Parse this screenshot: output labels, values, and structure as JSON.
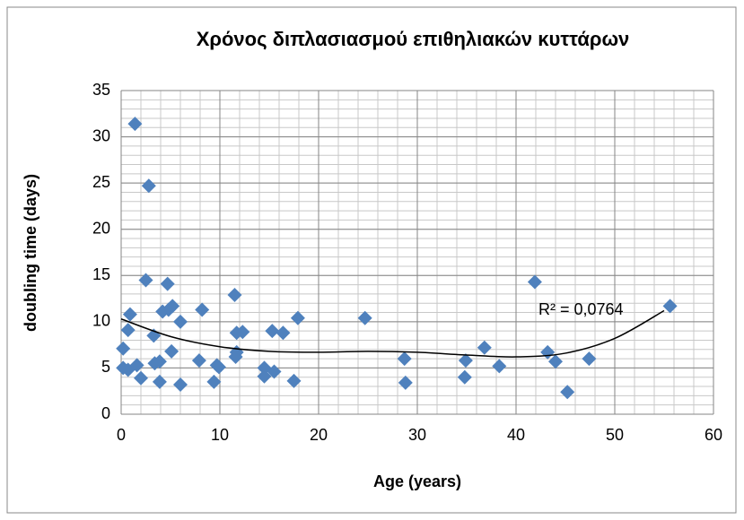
{
  "chart_data": {
    "type": "scatter",
    "title": "Χρόνος διπλασιασμού επιθηλιακών κυττάρων",
    "x_label": "Age (years)",
    "y_label": "doubling time (days)",
    "annotation": "R² = 0,0764",
    "xlim": [
      0,
      60
    ],
    "xticks": [
      0,
      10,
      20,
      30,
      40,
      50,
      60
    ],
    "ylim": [
      0,
      35
    ],
    "yticks": [
      0,
      5,
      10,
      15,
      20,
      25,
      30,
      35
    ],
    "grid": true,
    "minor_grid": true,
    "series": [
      {
        "name": "doubling time",
        "color": "#4f81bd",
        "x": [
          0.2,
          0.2,
          1.4,
          2.8,
          2.5,
          0.9,
          0.7,
          0.7,
          1.6,
          2.0,
          3.3,
          3.4,
          3.9,
          3.9,
          4.2,
          4.8,
          4.7,
          5.2,
          5.1,
          6.0,
          6.0,
          8.2,
          7.9,
          9.4,
          9.7,
          9.9,
          11.5,
          11.7,
          12.3,
          11.7,
          11.6,
          14.5,
          14.5,
          15.5,
          15.3,
          16.4,
          17.5,
          17.9,
          24.7,
          28.7,
          28.8,
          34.8,
          34.9,
          36.8,
          38.3,
          41.9,
          43.2,
          44.0,
          45.2,
          47.4,
          55.6
        ],
        "values": [
          7.1,
          5.0,
          31.4,
          24.7,
          14.5,
          10.8,
          9.1,
          4.8,
          5.3,
          3.9,
          8.5,
          5.5,
          5.7,
          3.5,
          11.1,
          11.3,
          14.1,
          11.7,
          6.8,
          10.0,
          3.2,
          11.3,
          5.8,
          3.5,
          5.3,
          5.1,
          12.9,
          8.8,
          8.9,
          6.7,
          6.2,
          5.0,
          4.1,
          4.6,
          9.0,
          8.8,
          3.6,
          10.4,
          10.4,
          6.0,
          3.4,
          4.0,
          5.8,
          7.2,
          5.2,
          14.3,
          6.7,
          5.7,
          2.4,
          6.0,
          11.7
        ]
      }
    ],
    "trendline": {
      "x": [
        0,
        5,
        10,
        15,
        20,
        25,
        30,
        35,
        40,
        45,
        50,
        55
      ],
      "values": [
        10.3,
        8.4,
        7.3,
        6.8,
        6.7,
        6.8,
        6.7,
        6.4,
        6.2,
        6.6,
        8.2,
        11.2
      ]
    }
  }
}
